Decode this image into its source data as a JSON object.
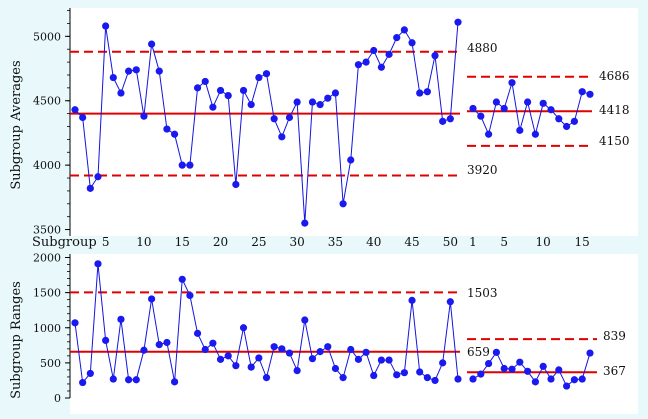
{
  "colors": {
    "background": "#E8F8FB",
    "plot_background": "#FFFFFF",
    "series": "#1414E0",
    "marker": "#1A1AF0",
    "limit_lines": "#E00000",
    "axis": "#000000"
  },
  "chart_data": [
    {
      "id": "averages",
      "type": "line",
      "ylabel": "Subgroup Averages",
      "xlabel": "Subgroup",
      "ylim": [
        3450,
        5220
      ],
      "yticks": [
        3500,
        4000,
        4500,
        5000
      ],
      "grid": false,
      "xticks_left": [
        "5",
        "10",
        "15",
        "20",
        "25",
        "30",
        "35",
        "40",
        "45",
        "50"
      ],
      "xticks_right": [
        "1",
        "5",
        "10",
        "15"
      ],
      "series": [
        {
          "x": [
            1,
            2,
            3,
            4,
            5,
            6,
            7,
            8,
            9,
            10,
            11,
            12,
            13,
            14,
            15,
            16,
            17,
            18,
            19,
            20,
            21,
            22,
            23,
            24,
            25,
            26,
            27,
            28,
            29,
            30,
            31,
            32,
            33,
            34,
            35,
            36,
            37,
            38,
            39,
            40,
            41,
            42,
            43,
            44,
            45,
            46,
            47,
            48,
            49,
            50,
            51
          ],
          "values": [
            4430,
            4370,
            3820,
            3910,
            5080,
            4680,
            4560,
            4730,
            4740,
            4380,
            4940,
            4730,
            4280,
            4240,
            4000,
            4000,
            4600,
            4650,
            4450,
            4580,
            4540,
            3850,
            4580,
            4470,
            4680,
            4710,
            4360,
            4220,
            4370,
            4490,
            3550,
            4490,
            4470,
            4520,
            4560,
            3700,
            4040,
            4780,
            4800,
            4890,
            4760,
            4860,
            4990,
            5050,
            4950,
            4560,
            4570,
            4850,
            4340,
            4360,
            5110
          ]
        },
        {
          "x": [
            1,
            2,
            3,
            4,
            5,
            6,
            7,
            8,
            9,
            10,
            11,
            12,
            13,
            14,
            15,
            16
          ],
          "values": [
            4440,
            4380,
            4240,
            4490,
            4440,
            4640,
            4270,
            4490,
            4240,
            4480,
            4430,
            4360,
            4300,
            4340,
            4570,
            4550
          ]
        }
      ],
      "control_limits": {
        "segment1": {
          "ucl": 4880,
          "center": 4400,
          "lcl": 3920
        },
        "segment2": {
          "ucl": 4686,
          "center": 4418,
          "lcl": 4150
        }
      },
      "labels": {
        "seg1_ucl": "4880",
        "seg1_lcl": "3920",
        "seg2_ucl": "4686",
        "seg2_center": "4418",
        "seg2_lcl": "4150"
      }
    },
    {
      "id": "ranges",
      "type": "line",
      "ylabel": "Subgroup Ranges",
      "ylim": [
        0,
        2050
      ],
      "yticks": [
        0,
        500,
        1000,
        1500,
        2000
      ],
      "grid": false,
      "series": [
        {
          "x": [
            1,
            2,
            3,
            4,
            5,
            6,
            7,
            8,
            9,
            10,
            11,
            12,
            13,
            14,
            15,
            16,
            17,
            18,
            19,
            20,
            21,
            22,
            23,
            24,
            25,
            26,
            27,
            28,
            29,
            30,
            31,
            32,
            33,
            34,
            35,
            36,
            37,
            38,
            39,
            40,
            41,
            42,
            43,
            44,
            45,
            46,
            47,
            48,
            49,
            50,
            51
          ],
          "values": [
            1070,
            220,
            350,
            1910,
            820,
            270,
            1120,
            260,
            260,
            680,
            1410,
            760,
            790,
            230,
            1690,
            1460,
            920,
            690,
            780,
            550,
            600,
            460,
            1000,
            440,
            570,
            290,
            730,
            700,
            640,
            390,
            1110,
            560,
            660,
            730,
            420,
            290,
            690,
            550,
            650,
            320,
            540,
            540,
            330,
            360,
            1390,
            370,
            290,
            250,
            500,
            1370,
            270
          ]
        },
        {
          "x": [
            1,
            2,
            3,
            4,
            5,
            6,
            7,
            8,
            9,
            10,
            11,
            12,
            13,
            14,
            15,
            16
          ],
          "values": [
            270,
            340,
            490,
            650,
            420,
            410,
            510,
            380,
            230,
            450,
            270,
            400,
            170,
            260,
            270,
            640
          ]
        }
      ],
      "control_limits": {
        "segment1": {
          "ucl": 1503,
          "center": 659
        },
        "segment2": {
          "ucl": 839,
          "center": 367
        }
      },
      "labels": {
        "seg1_ucl": "1503",
        "seg1_center": "659",
        "seg2_ucl": "839",
        "seg2_center": "367"
      }
    }
  ]
}
